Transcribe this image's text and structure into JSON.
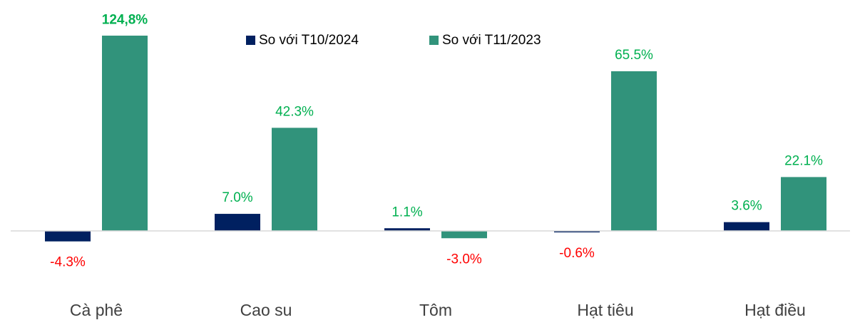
{
  "chart_data": {
    "type": "bar",
    "categories": [
      "Cà phê",
      "Cao su",
      "Tôm",
      "Hạt tiêu",
      "Hạt điều"
    ],
    "series": [
      {
        "name": "So với T10/2024",
        "color": "#002060",
        "values": [
          -4.3,
          7.0,
          1.1,
          -0.6,
          3.6
        ],
        "value_labels": [
          "-4.3%",
          "7.0%",
          "1.1%",
          "-0.6%",
          "3.6%"
        ]
      },
      {
        "name": "So với T11/2023",
        "color": "#31937b",
        "values": [
          124.8,
          42.3,
          -3.0,
          65.5,
          22.1
        ],
        "value_labels": [
          "124,8%",
          "42.3%",
          "-3.0%",
          "65.5%",
          "22.1%"
        ]
      }
    ],
    "ylim": [
      -30,
      80
    ],
    "positive_label_color": "#00b050",
    "negative_label_color": "#ff0000",
    "legend": "top"
  }
}
